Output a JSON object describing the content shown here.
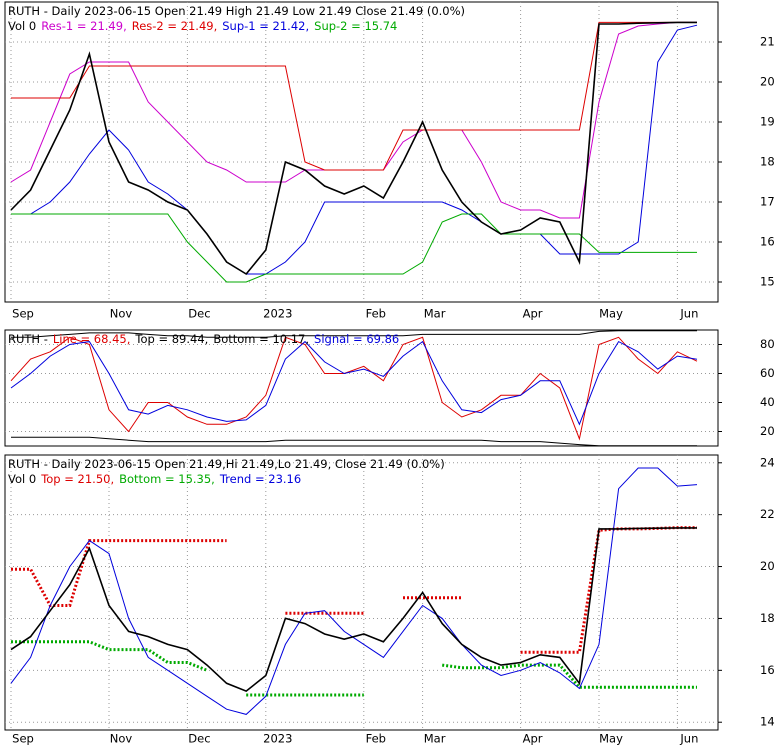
{
  "chart_data": [
    {
      "type": "line",
      "title": "RUTH - Daily 2023-06-15 Open 21.49  High 21.49  Low 21.49  Close 21.49 (0.0%)",
      "subtitle": "Vol 0",
      "categories": [
        "Sep",
        null,
        null,
        null,
        null,
        "Nov",
        null,
        null,
        null,
        "Dec",
        null,
        null,
        null,
        "2023",
        null,
        null,
        null,
        null,
        "Feb",
        null,
        null,
        "Mar",
        null,
        null,
        null,
        null,
        "Apr",
        null,
        null,
        null,
        "May",
        null,
        null,
        null,
        "Jun",
        null
      ],
      "values": [
        16.8,
        17.3,
        18.3,
        19.3,
        20.7,
        18.5,
        17.5,
        17.3,
        17.0,
        16.8,
        16.2,
        15.5,
        15.2,
        15.8,
        18.0,
        17.8,
        17.4,
        17.2,
        17.4,
        17.1,
        18.0,
        19.0,
        17.8,
        17.0,
        16.5,
        16.2,
        16.3,
        16.6,
        16.5,
        15.5,
        21.45,
        21.45,
        21.47,
        21.48,
        21.49,
        21.49
      ],
      "color": "#000000",
      "ylim": [
        14.5,
        22.0
      ],
      "yticks": [
        15,
        16,
        17,
        18,
        19,
        20,
        21
      ],
      "grid": true,
      "series": [
        {
          "name": "Res-1 = 21.49,",
          "color": "#cc00cc",
          "values": [
            17.5,
            17.8,
            19.0,
            20.2,
            20.5,
            20.5,
            20.5,
            19.5,
            19.0,
            18.5,
            18.0,
            17.8,
            17.5,
            17.5,
            17.5,
            17.8,
            17.8,
            17.8,
            17.8,
            17.8,
            18.5,
            18.8,
            18.8,
            18.8,
            18.0,
            17.0,
            16.8,
            16.8,
            16.6,
            16.6,
            19.5,
            21.2,
            21.4,
            21.45,
            21.49,
            21.49
          ]
        },
        {
          "name": "Res-2 = 21.49,",
          "color": "#dd0000",
          "values": [
            19.6,
            19.6,
            19.6,
            19.6,
            20.4,
            20.4,
            20.4,
            20.4,
            20.4,
            20.4,
            20.4,
            20.4,
            20.4,
            20.4,
            20.4,
            18.0,
            17.8,
            17.8,
            17.8,
            17.8,
            18.8,
            18.8,
            18.8,
            18.8,
            18.8,
            18.8,
            18.8,
            18.8,
            18.8,
            18.8,
            21.49,
            21.49,
            21.49,
            21.49,
            21.49,
            21.49
          ]
        },
        {
          "name": "Sup-1 = 21.42,",
          "color": "#0000dd",
          "values": [
            16.7,
            16.7,
            17.0,
            17.5,
            18.2,
            18.8,
            18.3,
            17.5,
            17.2,
            16.8,
            16.2,
            15.5,
            15.2,
            15.2,
            15.5,
            16.0,
            17.0,
            17.0,
            17.0,
            17.0,
            17.0,
            17.0,
            17.0,
            16.8,
            16.5,
            16.2,
            16.2,
            16.2,
            15.7,
            15.7,
            15.7,
            15.7,
            16.0,
            20.5,
            21.3,
            21.42
          ]
        },
        {
          "name": "Sup-2 = 15.74",
          "color": "#00aa00",
          "values": [
            16.7,
            16.7,
            16.7,
            16.7,
            16.7,
            16.7,
            16.7,
            16.7,
            16.7,
            16.0,
            15.5,
            15.0,
            15.0,
            15.2,
            15.2,
            15.2,
            15.2,
            15.2,
            15.2,
            15.2,
            15.2,
            15.5,
            16.5,
            16.7,
            16.7,
            16.2,
            16.2,
            16.2,
            16.2,
            16.2,
            15.74,
            15.74,
            15.74,
            15.74,
            15.74,
            15.74
          ]
        }
      ]
    },
    {
      "type": "line",
      "title": "RUTH -",
      "categories": [
        null,
        null,
        null,
        null,
        null,
        null,
        null,
        null,
        null,
        null,
        null,
        null,
        null,
        null,
        null,
        null,
        null,
        null,
        null,
        null,
        null,
        null,
        null,
        null,
        null,
        null,
        null,
        null,
        null,
        null,
        null,
        null,
        null,
        null,
        null,
        null
      ],
      "ylim": [
        10,
        90
      ],
      "yticks": [
        20,
        40,
        60,
        80
      ],
      "grid": true,
      "series": [
        {
          "name": "Line = 68.45,",
          "color": "#dd0000",
          "values": [
            55,
            70,
            75,
            85,
            80,
            35,
            20,
            40,
            40,
            30,
            25,
            25,
            30,
            45,
            85,
            80,
            60,
            60,
            65,
            55,
            80,
            85,
            40,
            30,
            35,
            45,
            45,
            60,
            50,
            15,
            80,
            85,
            70,
            60,
            75,
            68.45
          ]
        },
        {
          "name": "Top = 89.44,",
          "color": "#000000",
          "values": [
            85,
            85,
            86,
            87,
            88,
            88,
            88,
            87,
            86,
            86,
            85,
            85,
            85,
            85,
            86,
            86,
            86,
            86,
            86,
            86,
            86,
            87,
            87,
            87,
            87,
            87,
            87,
            87,
            87,
            87,
            89,
            89.44,
            89.44,
            89.44,
            89.44,
            89.44
          ]
        },
        {
          "name": "Bottom = 10.17,",
          "color": "#000000",
          "values": [
            16,
            16,
            16,
            16,
            16,
            15,
            14,
            13,
            13,
            13,
            13,
            13,
            13,
            13,
            14,
            14,
            14,
            14,
            14,
            14,
            14,
            14,
            14,
            14,
            14,
            13,
            13,
            13,
            12,
            11,
            10.17,
            10.17,
            10.17,
            10.17,
            10.17,
            10.17
          ]
        },
        {
          "name": "Signal = 69.86",
          "color": "#0000dd",
          "values": [
            50,
            60,
            72,
            80,
            82,
            60,
            35,
            32,
            38,
            35,
            30,
            27,
            28,
            38,
            70,
            82,
            68,
            60,
            63,
            58,
            72,
            82,
            55,
            35,
            33,
            42,
            45,
            55,
            55,
            25,
            60,
            82,
            75,
            63,
            72,
            69.86
          ]
        }
      ]
    },
    {
      "type": "line",
      "title": "RUTH - Daily 2023-06-15 Open 21.49,Hi 21.49,Lo 21.49, Close 21.49 (0.0%)",
      "subtitle": "Vol 0",
      "categories": [
        "Sep",
        null,
        null,
        null,
        null,
        "Nov",
        null,
        null,
        null,
        "Dec",
        null,
        null,
        null,
        "2023",
        null,
        null,
        null,
        null,
        "Feb",
        null,
        null,
        "Mar",
        null,
        null,
        null,
        null,
        "Apr",
        null,
        null,
        null,
        "May",
        null,
        null,
        null,
        "Jun",
        null
      ],
      "values": [
        16.8,
        17.3,
        18.3,
        19.3,
        20.7,
        18.5,
        17.5,
        17.3,
        17.0,
        16.8,
        16.2,
        15.5,
        15.2,
        15.8,
        18.0,
        17.8,
        17.4,
        17.2,
        17.4,
        17.1,
        18.0,
        19.0,
        17.8,
        17.0,
        16.5,
        16.2,
        16.3,
        16.6,
        16.5,
        15.5,
        21.45,
        21.45,
        21.47,
        21.48,
        21.49,
        21.49
      ],
      "color": "#000000",
      "ylim": [
        13.7,
        24.3
      ],
      "yticks": [
        14,
        16,
        18,
        20,
        22,
        24
      ],
      "grid": true,
      "series": [
        {
          "name": "Top = 21.50,",
          "color": "#dd0000",
          "dash": true,
          "values": [
            19.9,
            19.9,
            18.5,
            18.5,
            21.0,
            21.0,
            21.0,
            21.0,
            21.0,
            21.0,
            21.0,
            21.0,
            null,
            null,
            18.2,
            18.2,
            18.2,
            18.2,
            18.2,
            null,
            18.8,
            18.8,
            18.8,
            18.8,
            null,
            null,
            16.7,
            16.7,
            16.7,
            16.7,
            21.4,
            21.45,
            21.45,
            21.47,
            21.5,
            21.5
          ]
        },
        {
          "name": "Bottom = 15.35,",
          "color": "#00aa00",
          "dash": true,
          "values": [
            17.1,
            17.1,
            17.1,
            17.1,
            17.1,
            16.8,
            16.8,
            16.8,
            16.3,
            16.3,
            16.0,
            null,
            15.05,
            15.05,
            15.05,
            15.05,
            15.05,
            15.05,
            15.05,
            null,
            null,
            null,
            16.2,
            16.1,
            16.1,
            16.1,
            16.2,
            16.2,
            16.2,
            15.35,
            15.35,
            15.35,
            15.35,
            15.35,
            15.35,
            15.35
          ]
        },
        {
          "name": "Trend = 23.16",
          "color": "#0000dd",
          "values": [
            15.5,
            16.5,
            18.5,
            20.0,
            21.0,
            20.5,
            18.0,
            16.5,
            16.0,
            15.5,
            15.0,
            14.5,
            14.3,
            15.0,
            17.0,
            18.2,
            18.3,
            17.5,
            17.0,
            16.5,
            17.5,
            18.5,
            18.0,
            17.0,
            16.2,
            15.8,
            16.0,
            16.3,
            15.9,
            15.3,
            17.0,
            23.0,
            23.8,
            23.8,
            23.1,
            23.16
          ]
        }
      ]
    }
  ]
}
